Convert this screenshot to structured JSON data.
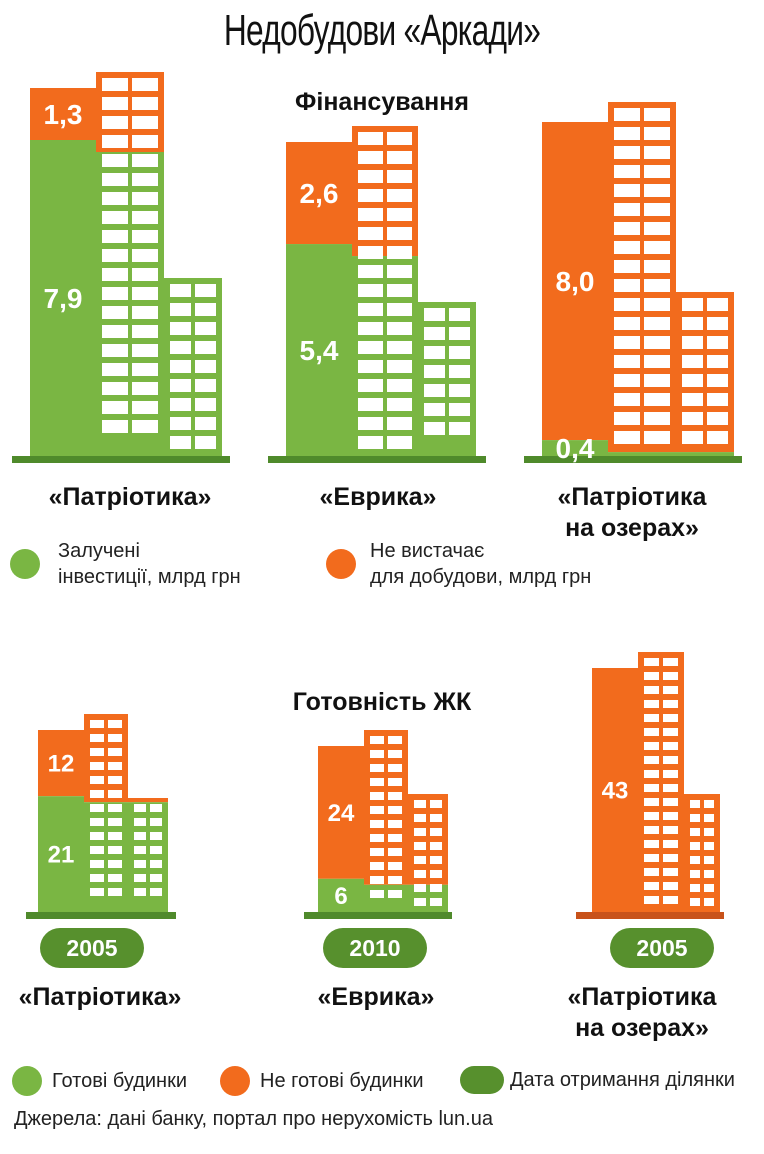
{
  "title": "Недобудови «Аркади»",
  "colors": {
    "green": "#7ab643",
    "orange": "#f26b1d",
    "dark_green": "#57902d",
    "ground": "#4f8a2b"
  },
  "chart_data": [
    {
      "type": "bar",
      "title": "Фінансування",
      "categories": [
        "«Патріотика»",
        "«Еврика»",
        "«Патріотика на озерах»"
      ],
      "series": [
        {
          "name": "Залучені інвестиції, млрд грн",
          "values": [
            7.9,
            5.4,
            0.4
          ],
          "labels": [
            "7,9",
            "5,4",
            "0,4"
          ]
        },
        {
          "name": "Не вистачає для добудови, млрд грн",
          "values": [
            1.3,
            2.6,
            8.0
          ],
          "labels": [
            "1,3",
            "2,6",
            "8,0"
          ]
        }
      ]
    },
    {
      "type": "bar",
      "title": "Готовність ЖК",
      "categories": [
        "«Патріотика»",
        "«Еврика»",
        "«Патріотика на озерах»"
      ],
      "series": [
        {
          "name": "Готові будинки",
          "values": [
            21,
            6,
            0
          ],
          "labels": [
            "21",
            "6",
            ""
          ]
        },
        {
          "name": "Не готові будинки",
          "values": [
            12,
            24,
            43
          ],
          "labels": [
            "12",
            "24",
            "43"
          ]
        }
      ],
      "years": [
        "2005",
        "2010",
        "2005"
      ]
    }
  ],
  "financing": {
    "title": "Фінансування",
    "labels": [
      {
        "line1": "«Патріотика»",
        "line2": ""
      },
      {
        "line1": "«Еврика»",
        "line2": ""
      },
      {
        "line1": "«Патріотика",
        "line2": "на озерах»"
      }
    ],
    "legend": {
      "green_line1": "Залучені",
      "green_line2": "інвестиції, млрд грн",
      "orange_line1": "Не вистачає",
      "orange_line2": "для добудови, млрд грн"
    }
  },
  "readiness": {
    "title": "Готовність ЖК",
    "years": [
      "2005",
      "2010",
      "2005"
    ],
    "labels": [
      {
        "line1": "«Патріотика»",
        "line2": ""
      },
      {
        "line1": "«Еврика»",
        "line2": ""
      },
      {
        "line1": "«Патріотика",
        "line2": "на озерах»"
      }
    ],
    "legend": {
      "ready": "Готові будинки",
      "not_ready": "Не готові будинки",
      "date": "Дата отримання ділянки"
    }
  },
  "source": "Джерела: дані банку, портал про нерухомість lun.ua"
}
